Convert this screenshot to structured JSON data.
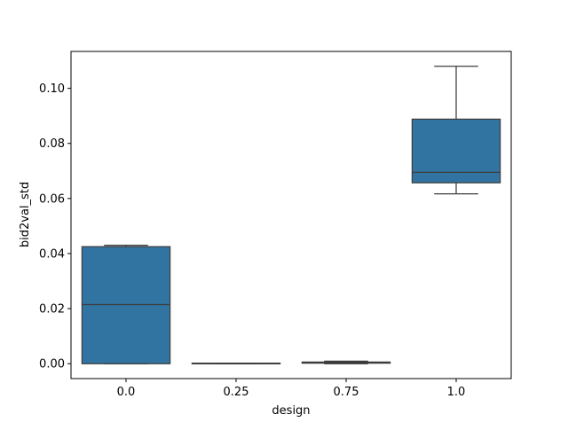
{
  "chart_data": {
    "type": "box",
    "xlabel": "design",
    "ylabel": "bid2val_std",
    "categories": [
      "0.0",
      "0.25",
      "0.75",
      "1.0"
    ],
    "boxes": [
      {
        "category": "0.0",
        "whislo": 0.0,
        "q1": 0.0,
        "med": 0.0215,
        "q3": 0.0425,
        "whishi": 0.043
      },
      {
        "category": "0.25",
        "whislo": 0.0,
        "q1": 0.0,
        "med": 0.0,
        "q3": 0.0002,
        "whishi": 0.0002
      },
      {
        "category": "0.75",
        "whislo": 0.0,
        "q1": 0.0002,
        "med": 0.0004,
        "q3": 0.0006,
        "whishi": 0.0009
      },
      {
        "category": "1.0",
        "whislo": 0.0617,
        "q1": 0.0657,
        "med": 0.0695,
        "q3": 0.0888,
        "whishi": 0.108
      }
    ],
    "ylim": [
      -0.0054,
      0.1134
    ],
    "yticks": [
      0.0,
      0.02,
      0.04,
      0.06,
      0.08,
      0.1
    ],
    "ytick_labels": [
      "0.00",
      "0.02",
      "0.04",
      "0.06",
      "0.08",
      "0.10"
    ],
    "grid": false,
    "colors": {
      "box_fill": "#3274a1",
      "line": "#3d3d3d",
      "axes": "#000000"
    }
  }
}
